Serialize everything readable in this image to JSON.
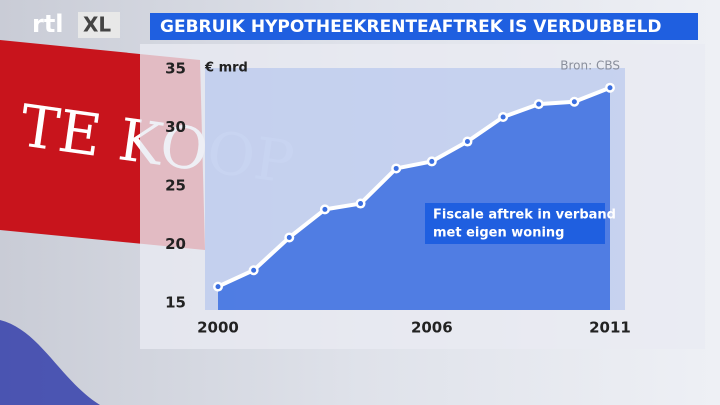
{
  "chart_data": {
    "type": "line",
    "title": "GEBRUIK HYPOTHEEKRENTEAFTREK IS VERDUBBELD",
    "y_label": "€ mrd",
    "source": "Bron: CBS",
    "annotation": [
      "Fiscale aftrek in verband",
      "met eigen woning"
    ],
    "logo": [
      "rtl",
      "XL"
    ],
    "background_text": "TE KOOP",
    "x": [
      2000,
      2001,
      2002,
      2003,
      2004,
      2005,
      2006,
      2007,
      2008,
      2009,
      2010,
      2011
    ],
    "values": [
      16.4,
      17.8,
      20.6,
      23.0,
      23.5,
      26.5,
      27.1,
      28.8,
      30.9,
      32.0,
      32.2,
      33.4
    ],
    "xlim": [
      2000,
      2011
    ],
    "xticks": [
      2000,
      2006,
      2011
    ],
    "ylim": [
      15,
      35
    ],
    "yticks": [
      15,
      20,
      25,
      30,
      35
    ],
    "color": "#ffffff",
    "fill_color": "#3b6fe0"
  }
}
